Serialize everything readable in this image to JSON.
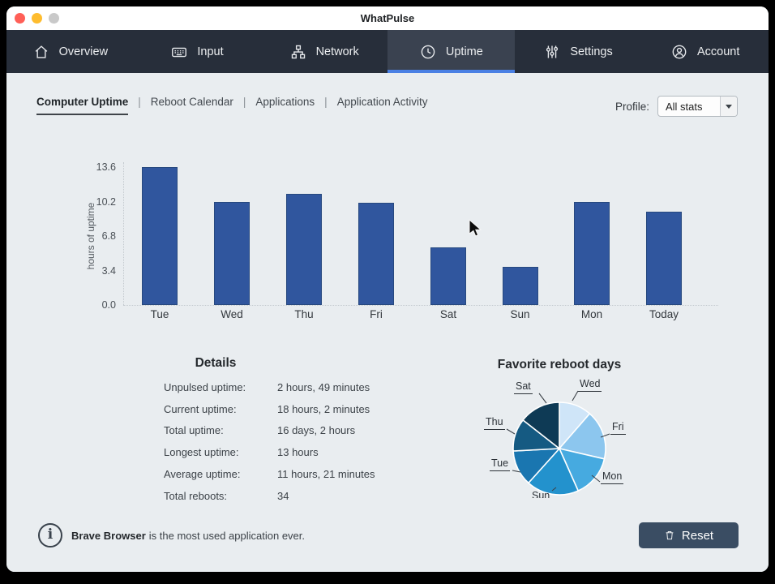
{
  "window": {
    "title": "WhatPulse"
  },
  "traffic_lights": {
    "close": "#ff5f57",
    "minimize": "#febc2e",
    "zoom": "#c9c9c9"
  },
  "colors": {
    "accent": "#4a80e4",
    "nav_bg": "#272e3a",
    "nav_active_bg": "#3a4250",
    "bar": "#30569e",
    "button": "#3a4d63",
    "content_bg": "#e9edf0"
  },
  "nav": {
    "active_index": 3,
    "tabs": [
      {
        "label": "Overview",
        "icon": "home-icon"
      },
      {
        "label": "Input",
        "icon": "keyboard-icon"
      },
      {
        "label": "Network",
        "icon": "network-icon"
      },
      {
        "label": "Uptime",
        "icon": "clock-icon"
      },
      {
        "label": "Settings",
        "icon": "sliders-icon"
      },
      {
        "label": "Account",
        "icon": "user-icon"
      }
    ]
  },
  "subnav": {
    "active_index": 0,
    "separator": "|",
    "items": [
      "Computer Uptime",
      "Reboot Calendar",
      "Applications",
      "Application Activity"
    ],
    "profile_label": "Profile:",
    "profile_value": "All stats"
  },
  "chart_data": [
    {
      "type": "bar",
      "title": "",
      "categories": [
        "Tue",
        "Wed",
        "Thu",
        "Fri",
        "Sat",
        "Sun",
        "Mon",
        "Today"
      ],
      "values": [
        13.6,
        10.2,
        11.0,
        10.1,
        5.7,
        3.8,
        10.2,
        9.2
      ],
      "xlabel": "",
      "ylabel": "hours of uptime",
      "yticks": [
        0.0,
        3.4,
        6.8,
        10.2,
        13.6
      ],
      "ylim": [
        0,
        13.6
      ],
      "grid": false,
      "bar_color": "#30569e"
    },
    {
      "type": "pie",
      "title": "Favorite reboot days",
      "direction": "clockwise",
      "start_angle_deg_from_top": 0,
      "legend": "callout-labels",
      "slices": [
        {
          "label": "Wed",
          "degrees": 41,
          "percent": 11.4,
          "color": "#cfe5f8"
        },
        {
          "label": "Fri",
          "degrees": 62,
          "percent": 17.2,
          "color": "#8cc6ee"
        },
        {
          "label": "Mon",
          "degrees": 53,
          "percent": 14.7,
          "color": "#46aae0"
        },
        {
          "label": "Sun",
          "degrees": 66,
          "percent": 18.3,
          "color": "#2392cd"
        },
        {
          "label": "Tue",
          "degrees": 45,
          "percent": 12.5,
          "color": "#1a76b0"
        },
        {
          "label": "Thu",
          "degrees": 41,
          "percent": 11.4,
          "color": "#155a82"
        },
        {
          "label": "Sat",
          "degrees": 52,
          "percent": 14.4,
          "color": "#0e3a55"
        }
      ]
    }
  ],
  "details": {
    "title": "Details",
    "rows": [
      {
        "label": "Unpulsed uptime:",
        "value": "2 hours, 49 minutes"
      },
      {
        "label": "Current uptime:",
        "value": "18 hours, 2 minutes"
      },
      {
        "label": "Total uptime:",
        "value": "16 days, 2 hours"
      },
      {
        "label": "Longest uptime:",
        "value": "13 hours"
      },
      {
        "label": "Average uptime:",
        "value": "11 hours, 21 minutes"
      },
      {
        "label": "Total reboots:",
        "value": "34"
      }
    ]
  },
  "footer": {
    "message_bold": "Brave Browser",
    "message_rest": " is the most used application ever.",
    "reset_label": "Reset"
  }
}
